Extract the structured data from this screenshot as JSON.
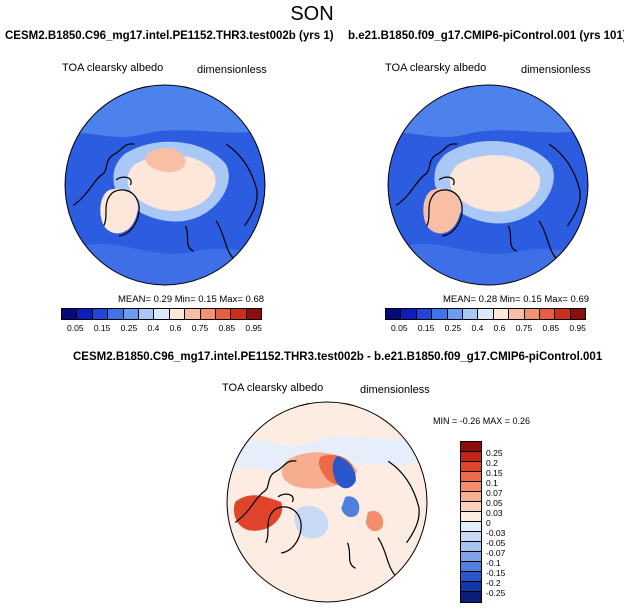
{
  "page_title": "SON",
  "panels": [
    {
      "header": "CESM2.B1850.C96_mg17.intel.PE1152.THR3.test002b (yrs 1)",
      "var_label": "TOA clearsky albedo",
      "units_label": "dimensionless",
      "stats": "MEAN=   0.29  Min=   0.15  Max=   0.68"
    },
    {
      "header": "b.e21.B1850.f09_g17.CMIP6-piControl.001 (yrs 101)",
      "var_label": "TOA clearsky albedo",
      "units_label": "dimensionless",
      "stats": "MEAN=   0.28  Min=   0.15  Max=   0.69"
    }
  ],
  "diff_panel": {
    "header": "CESM2.B1850.C96_mg17.intel.PE1152.THR3.test002b - b.e21.B1850.f09_g17.CMIP6-piControl.001",
    "var_label": "TOA clearsky albedo",
    "units_label": "dimensionless",
    "stats": "MIN =  -0.26 MAX =   0.26"
  },
  "colorbar_abs": {
    "labels": [
      "0.05",
      "0.15",
      "0.25",
      "0.4",
      "0.6",
      "0.75",
      "0.85",
      "0.95"
    ],
    "colors": [
      "#050a7a",
      "#0b1eb8",
      "#1f45d6",
      "#3e73ea",
      "#6a9cf2",
      "#a9c8f6",
      "#dce8fb",
      "#fde6da",
      "#f8bfa5",
      "#f29272",
      "#e65f45",
      "#c9301c",
      "#8a0e0a"
    ]
  },
  "colorbar_diff": {
    "labels": [
      "0.25",
      "0.2",
      "0.15",
      "0.1",
      "0.07",
      "0.05",
      "0.03",
      "0",
      "-0.03",
      "-0.05",
      "-0.07",
      "-0.1",
      "-0.15",
      "-0.2",
      "-0.25"
    ],
    "colors": [
      "#8a0e0a",
      "#c22416",
      "#e0452b",
      "#ed6a48",
      "#f38d6c",
      "#f7ae90",
      "#fbd0bd",
      "#fdece2",
      "#e6eefb",
      "#c8d9f5",
      "#a7c2ef",
      "#7ea4e7",
      "#4f80dd",
      "#2a56cb",
      "#1237a8",
      "#0a1f78"
    ]
  }
}
